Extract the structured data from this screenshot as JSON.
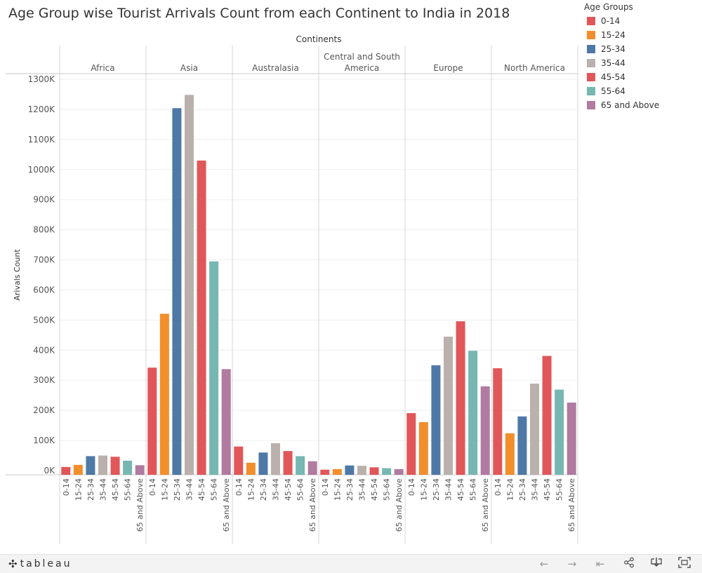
{
  "title": "Age Group wise Tourist Arrivals Count from each Continent to India in 2018",
  "legend": {
    "title": "Age Groups",
    "items": [
      {
        "label": "0-14",
        "color": "#e15759"
      },
      {
        "label": "15-24",
        "color": "#f28e2b"
      },
      {
        "label": "25-34",
        "color": "#4e79a7"
      },
      {
        "label": "35-44",
        "color": "#bab0ac"
      },
      {
        "label": "45-54",
        "color": "#e15759"
      },
      {
        "label": "55-64",
        "color": "#76b7b2"
      },
      {
        "label": "65 and Above",
        "color": "#b07aa1"
      }
    ]
  },
  "footer": {
    "logo_text": "tableau",
    "logo_icon": "tableau-plus-icon",
    "buttons": [
      "undo-icon",
      "redo-icon",
      "revert-icon",
      "share-icon",
      "download-icon",
      "fullscreen-icon"
    ]
  },
  "chart_data": {
    "type": "bar",
    "column_header_title": "Continents",
    "ylabel": "Arivals Count",
    "ylim": [
      0,
      1300000
    ],
    "y_ticks": [
      {
        "value": 0,
        "label": "0K"
      },
      {
        "value": 100000,
        "label": "100K"
      },
      {
        "value": 200000,
        "label": "200K"
      },
      {
        "value": 300000,
        "label": "300K"
      },
      {
        "value": 400000,
        "label": "400K"
      },
      {
        "value": 500000,
        "label": "500K"
      },
      {
        "value": 600000,
        "label": "600K"
      },
      {
        "value": 700000,
        "label": "700K"
      },
      {
        "value": 800000,
        "label": "800K"
      },
      {
        "value": 900000,
        "label": "900K"
      },
      {
        "value": 1000000,
        "label": "1000K"
      },
      {
        "value": 1100000,
        "label": "1100K"
      },
      {
        "value": 1200000,
        "label": "1200K"
      },
      {
        "value": 1300000,
        "label": "1300K"
      }
    ],
    "grid": true,
    "legend_position": "right",
    "categories": [
      "0-14",
      "15-24",
      "25-34",
      "35-44",
      "45-54",
      "55-64",
      "65 and Above"
    ],
    "panels": [
      {
        "name": "Africa",
        "values": [
          12000,
          19000,
          48000,
          50000,
          46000,
          33000,
          18000
        ]
      },
      {
        "name": "Asia",
        "values": [
          342000,
          521000,
          1204000,
          1248000,
          1030000,
          695000,
          337000
        ]
      },
      {
        "name": "Australasia",
        "values": [
          80000,
          26000,
          60000,
          91000,
          65000,
          48000,
          31000
        ]
      },
      {
        "name": "Central and South America",
        "values": [
          3000,
          5000,
          17000,
          16000,
          11000,
          8000,
          5000
        ]
      },
      {
        "name": "Europe",
        "values": [
          191000,
          161000,
          350000,
          445000,
          496000,
          398000,
          280000
        ]
      },
      {
        "name": "North America",
        "values": [
          340000,
          124000,
          180000,
          289000,
          381000,
          269000,
          226000
        ]
      }
    ]
  }
}
